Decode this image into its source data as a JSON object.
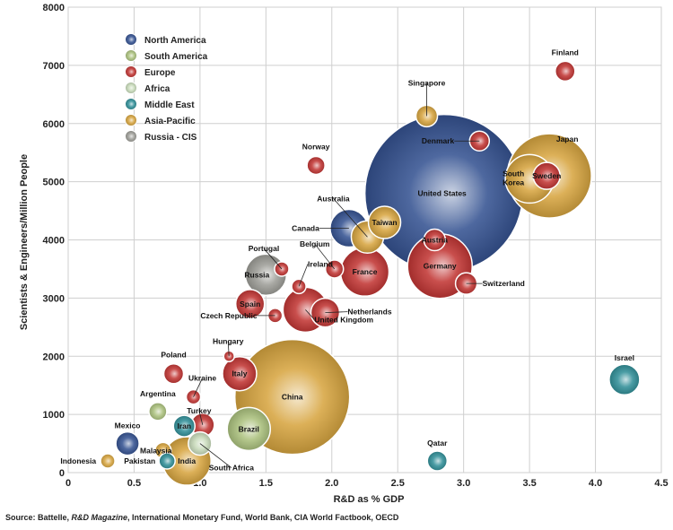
{
  "colors": {
    "North America": "#2f4d8e",
    "South America": "#a9c07a",
    "Europe": "#c0302e",
    "Africa": "#c6d9b8",
    "Middle East": "#2b8c95",
    "Asia-Pacific": "#d6a23a",
    "Russia - CIS": "#9a9a94"
  },
  "source": {
    "prefix": "Source: Battelle, ",
    "magazine": "R&D Magazine",
    "suffix": ", International Monetary Fund, World Bank, CIA World Factbook, OECD"
  },
  "chart_data": {
    "type": "scatter",
    "title": "",
    "xlabel": "R&D as % GDP",
    "ylabel": "Scientists & Engineers/Million People",
    "xlim": [
      0,
      4.5
    ],
    "ylim": [
      0,
      8000
    ],
    "xticks": [
      0,
      0.5,
      1.0,
      1.5,
      2.0,
      2.5,
      3.0,
      3.5,
      4.0,
      4.5
    ],
    "xtick_labels": [
      "0",
      "0.5",
      "1.0",
      "1.5",
      "2.0",
      "2.5",
      "3.0",
      "3.5",
      "4.0",
      "4.5"
    ],
    "yticks": [
      0,
      1000,
      2000,
      3000,
      4000,
      5000,
      6000,
      7000,
      8000
    ],
    "ytick_labels": [
      "0",
      "1000",
      "2000",
      "3000",
      "4000",
      "5000",
      "6000",
      "7000",
      "8000"
    ],
    "grid": true,
    "legend_placement": "top-left",
    "legend": [
      "North America",
      "South America",
      "Europe",
      "Africa",
      "Middle East",
      "Asia-Pacific",
      "Russia - CIS"
    ],
    "points": [
      {
        "name": "China",
        "region": "Asia-Pacific",
        "x": 1.7,
        "y": 1300,
        "r": 64
      },
      {
        "name": "United States",
        "region": "North America",
        "x": 2.85,
        "y": 4800,
        "r": 88
      },
      {
        "name": "Japan",
        "region": "Asia-Pacific",
        "x": 3.65,
        "y": 5100,
        "r": 47
      },
      {
        "name": "India",
        "region": "Asia-Pacific",
        "x": 0.9,
        "y": 200,
        "r": 27
      },
      {
        "name": "Germany",
        "region": "Europe",
        "x": 2.82,
        "y": 3550,
        "r": 36
      },
      {
        "name": "France",
        "region": "Europe",
        "x": 2.25,
        "y": 3450,
        "r": 27
      },
      {
        "name": "United Kingdom",
        "region": "Europe",
        "x": 1.8,
        "y": 2800,
        "r": 25
      },
      {
        "name": "South Korea",
        "region": "Asia-Pacific",
        "x": 3.5,
        "y": 5050,
        "r": 27
      },
      {
        "name": "Brazil",
        "region": "South America",
        "x": 1.37,
        "y": 750,
        "r": 24
      },
      {
        "name": "Russia",
        "region": "Russia - CIS",
        "x": 1.5,
        "y": 3400,
        "r": 23
      },
      {
        "name": "Italy",
        "region": "Europe",
        "x": 1.3,
        "y": 1700,
        "r": 19
      },
      {
        "name": "Canada",
        "region": "North America",
        "x": 2.13,
        "y": 4200,
        "r": 21
      },
      {
        "name": "Spain",
        "region": "Europe",
        "x": 1.38,
        "y": 2900,
        "r": 16
      },
      {
        "name": "Australia",
        "region": "Asia-Pacific",
        "x": 2.27,
        "y": 4050,
        "r": 18
      },
      {
        "name": "Taiwan",
        "region": "Asia-Pacific",
        "x": 2.4,
        "y": 4300,
        "r": 18
      },
      {
        "name": "Netherlands",
        "region": "Europe",
        "x": 1.95,
        "y": 2750,
        "r": 16
      },
      {
        "name": "Sweden",
        "region": "Europe",
        "x": 3.63,
        "y": 5100,
        "r": 15
      },
      {
        "name": "Austria",
        "region": "Europe",
        "x": 2.78,
        "y": 4000,
        "r": 12
      },
      {
        "name": "Switzerland",
        "region": "Europe",
        "x": 3.02,
        "y": 3250,
        "r": 12
      },
      {
        "name": "Singapore",
        "region": "Asia-Pacific",
        "x": 2.72,
        "y": 6130,
        "r": 12
      },
      {
        "name": "Denmark",
        "region": "Europe",
        "x": 3.12,
        "y": 5700,
        "r": 11
      },
      {
        "name": "Finland",
        "region": "Europe",
        "x": 3.77,
        "y": 6900,
        "r": 11
      },
      {
        "name": "Norway",
        "region": "Europe",
        "x": 1.88,
        "y": 5280,
        "r": 10
      },
      {
        "name": "Belgium",
        "region": "Europe",
        "x": 2.02,
        "y": 3500,
        "r": 10
      },
      {
        "name": "Portugal",
        "region": "Europe",
        "x": 1.62,
        "y": 3500,
        "r": 8
      },
      {
        "name": "Ireland",
        "region": "Europe",
        "x": 1.75,
        "y": 3200,
        "r": 8
      },
      {
        "name": "Czech Republic",
        "region": "Europe",
        "x": 1.57,
        "y": 2700,
        "r": 8
      },
      {
        "name": "Hungary",
        "region": "Europe",
        "x": 1.22,
        "y": 2000,
        "r": 6
      },
      {
        "name": "Poland",
        "region": "Europe",
        "x": 0.8,
        "y": 1700,
        "r": 11
      },
      {
        "name": "Ukraine",
        "region": "Europe",
        "x": 0.95,
        "y": 1300,
        "r": 8
      },
      {
        "name": "Turkey",
        "region": "Europe",
        "x": 1.02,
        "y": 820,
        "r": 13
      },
      {
        "name": "Argentina",
        "region": "South America",
        "x": 0.68,
        "y": 1050,
        "r": 10
      },
      {
        "name": "Iran",
        "region": "Middle East",
        "x": 0.88,
        "y": 800,
        "r": 12
      },
      {
        "name": "Mexico",
        "region": "North America",
        "x": 0.45,
        "y": 500,
        "r": 13
      },
      {
        "name": "Malaysia",
        "region": "Asia-Pacific",
        "x": 0.72,
        "y": 380,
        "r": 9
      },
      {
        "name": "Pakistan",
        "region": "Middle East",
        "x": 0.75,
        "y": 200,
        "r": 9
      },
      {
        "name": "Indonesia",
        "region": "Asia-Pacific",
        "x": 0.3,
        "y": 200,
        "r": 8
      },
      {
        "name": "South Africa",
        "region": "Africa",
        "x": 1.0,
        "y": 500,
        "r": 13
      },
      {
        "name": "Israel",
        "region": "Middle East",
        "x": 4.22,
        "y": 1600,
        "r": 17
      },
      {
        "name": "Qatar",
        "region": "Middle East",
        "x": 2.8,
        "y": 200,
        "r": 11
      }
    ]
  }
}
